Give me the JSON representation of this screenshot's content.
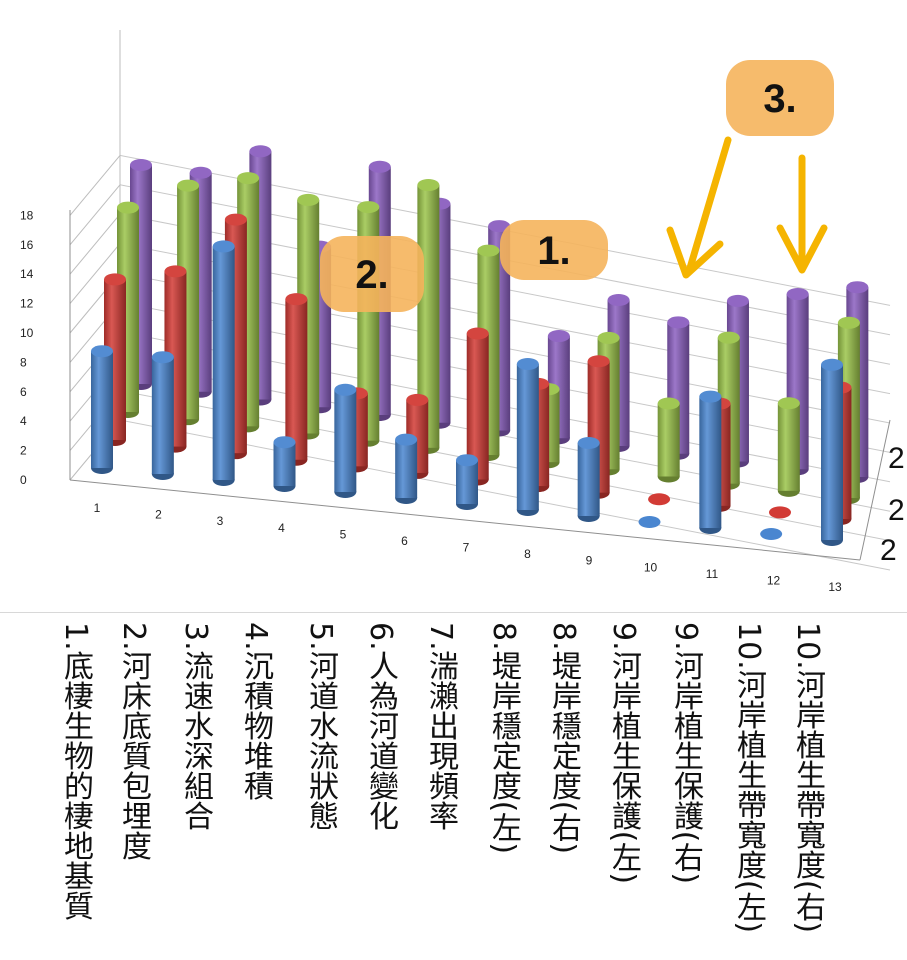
{
  "chart_data": {
    "type": "bar",
    "subtype": "3d-cylinder",
    "title": "",
    "xlabel": "",
    "ylabel": "",
    "ylim": [
      0,
      20
    ],
    "yticks": [
      "0",
      "2",
      "4",
      "6",
      "8",
      "10",
      "12",
      "14",
      "16",
      "18"
    ],
    "categories": [
      "1",
      "2",
      "3",
      "4",
      "5",
      "6",
      "7",
      "8",
      "9",
      "10",
      "11",
      "12",
      "13"
    ],
    "depth_tick_labels": [
      "2",
      "2",
      "2"
    ],
    "series": [
      {
        "color": "#4a86d0",
        "values": [
          8,
          8,
          16,
          3,
          7,
          4,
          3,
          10,
          5,
          0,
          9,
          0,
          12
        ]
      },
      {
        "color": "#d23b35",
        "values": [
          11,
          12,
          16,
          11,
          5,
          5,
          10,
          7,
          9,
          0,
          7,
          0,
          9
        ]
      },
      {
        "color": "#9bc44a",
        "values": [
          14,
          16,
          17,
          16,
          16,
          18,
          14,
          5,
          9,
          5,
          10,
          6,
          12
        ]
      },
      {
        "color": "#8b5fc0",
        "values": [
          15,
          15,
          17,
          11,
          17,
          15,
          14,
          7,
          10,
          9,
          11,
          12,
          13
        ]
      }
    ],
    "grid": true
  },
  "annotations": [
    {
      "id": "callout-1",
      "text": "1.",
      "color": "#f5b45c"
    },
    {
      "id": "callout-2",
      "text": "2.",
      "color": "#f5b45c"
    },
    {
      "id": "callout-3",
      "text": "3.",
      "color": "#f5b45c"
    }
  ],
  "arrow_color": "#f5b400",
  "category_labels": [
    "1.底棲生物的棲地基質",
    "2.河床底質包埋度",
    "3.流速水深組合",
    "4.沉積物堆積",
    "5.河道水流狀態",
    "6.人為河道變化",
    "7.湍瀨出現頻率",
    "8.堤岸穩定度(左)",
    "8.堤岸穩定度(右)",
    "9.河岸植生保護(左)",
    "9.河岸植生保護(右)",
    "10.河岸植生帶寬度(左)",
    "10.河岸植生帶寬度(右)"
  ]
}
